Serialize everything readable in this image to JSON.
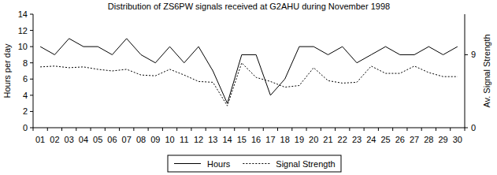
{
  "chart_data": {
    "type": "line",
    "title": "Distribution of ZS6PW signals received at G2AHU during November 1998",
    "y_label": "Hours per day",
    "y2_label": "Av. Signal Strength",
    "categories": [
      "01",
      "02",
      "03",
      "04",
      "05",
      "06",
      "07",
      "08",
      "09",
      "10",
      "11",
      "12",
      "13",
      "14",
      "15",
      "16",
      "17",
      "18",
      "19",
      "20",
      "21",
      "22",
      "23",
      "24",
      "25",
      "26",
      "27",
      "28",
      "29",
      "30"
    ],
    "series": [
      {
        "name": "Hours",
        "color": "#000000",
        "line_style": "solid",
        "values": [
          10,
          9,
          11,
          10,
          10,
          9,
          11,
          9,
          8,
          10,
          8,
          10,
          7,
          3,
          9,
          9,
          4,
          6,
          10,
          10,
          9,
          10,
          8,
          9,
          10,
          9,
          9,
          10,
          9,
          10
        ]
      },
      {
        "name": "Signal Strength",
        "color": "#000000",
        "line_style": "dotted",
        "axis": "y2",
        "values": [
          7.5,
          7.6,
          7.4,
          7.5,
          7.2,
          7.0,
          7.2,
          6.5,
          6.4,
          7.2,
          6.5,
          5.7,
          5.6,
          2.7,
          8.0,
          6.2,
          5.7,
          5.0,
          5.2,
          7.4,
          5.8,
          5.5,
          5.6,
          7.6,
          6.7,
          6.7,
          7.6,
          6.8,
          6.3,
          6.3
        ]
      }
    ],
    "ylim": [
      0,
      14
    ],
    "yticks": [
      0,
      2,
      4,
      6,
      8,
      10,
      12,
      14
    ],
    "y2lim": [
      0,
      14
    ],
    "y2ticks": [
      0,
      9
    ],
    "grid": false,
    "legend": "bottom"
  }
}
